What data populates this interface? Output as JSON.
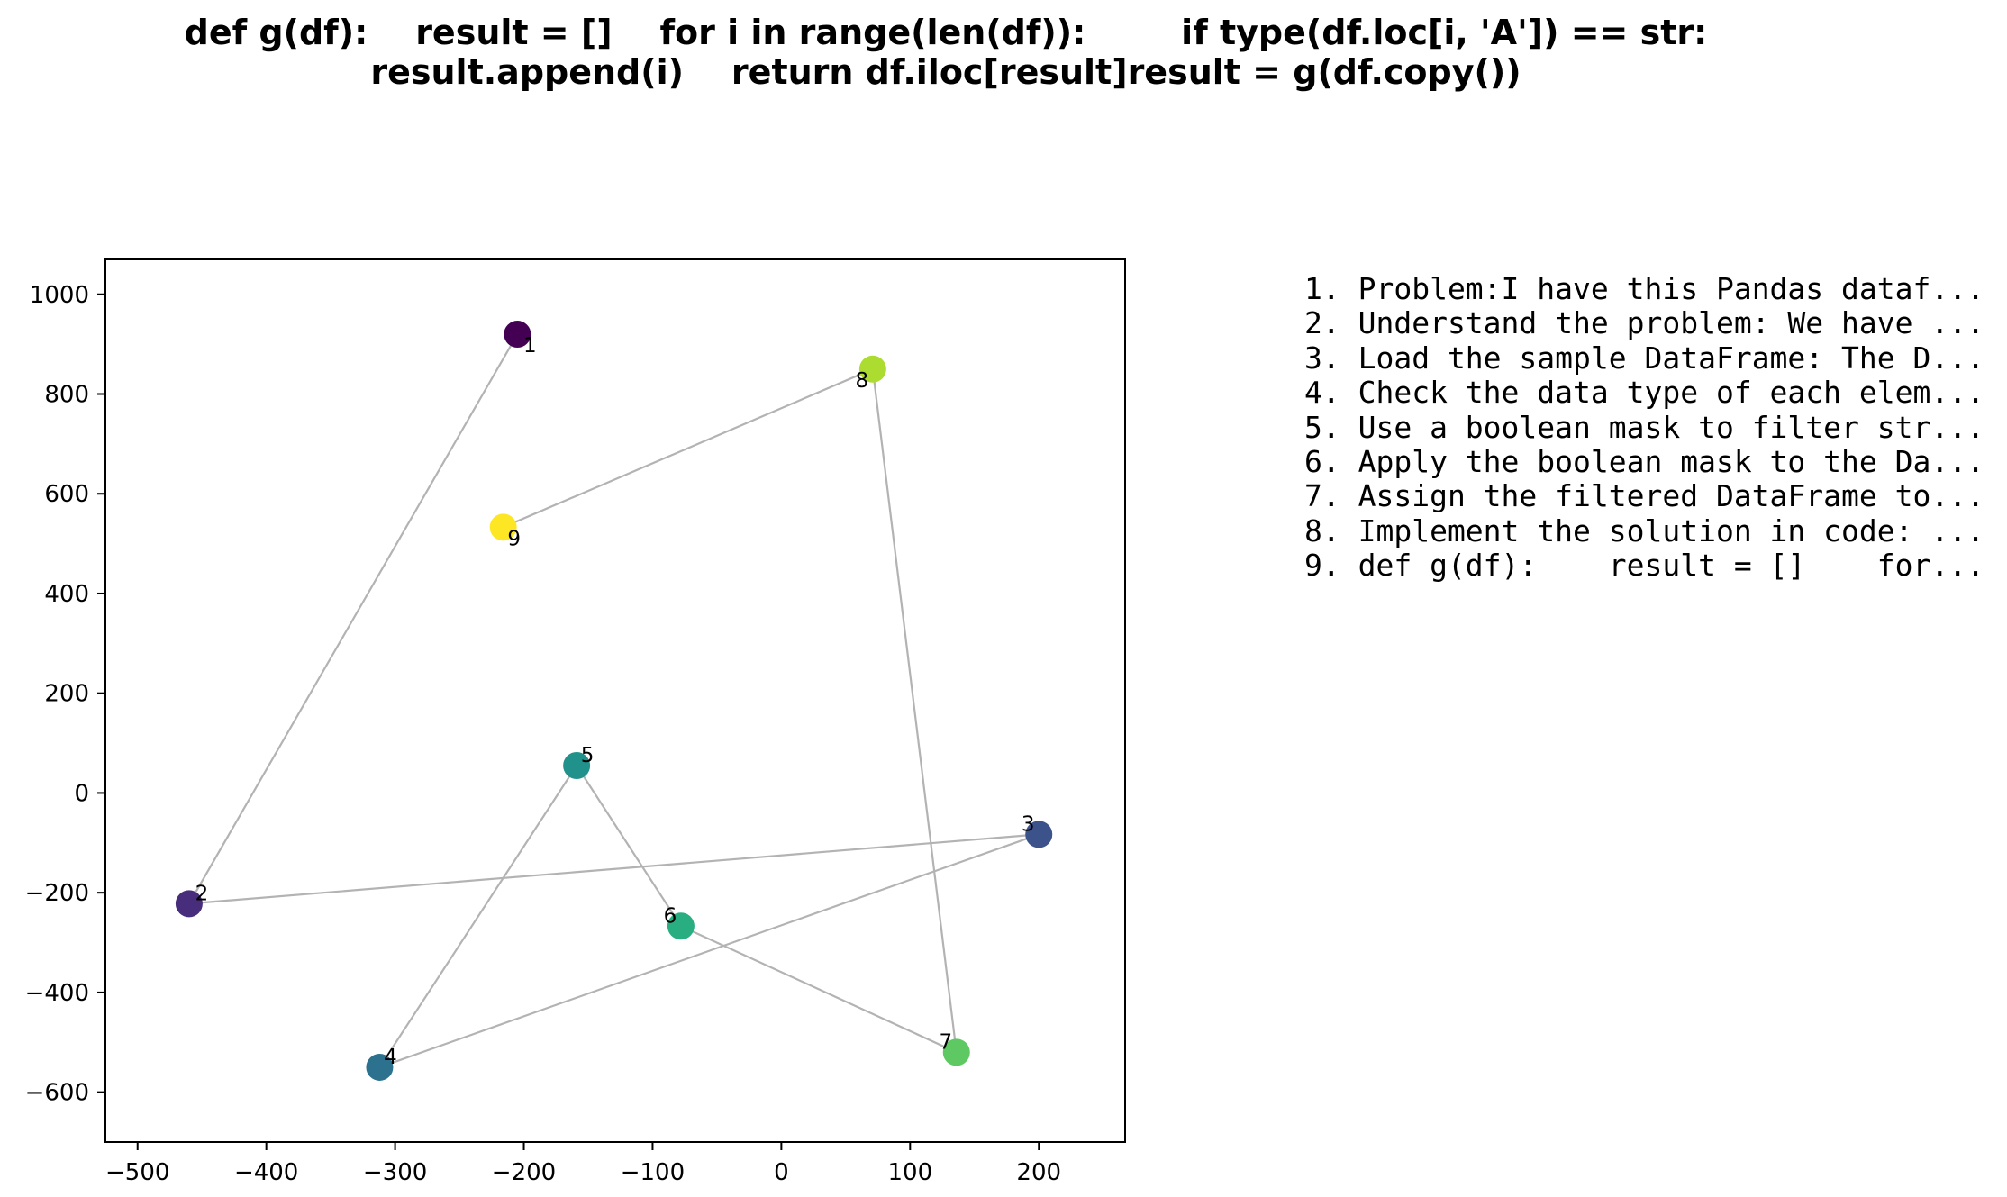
{
  "title_lines": [
    "def g(df):    result = []    for i in range(len(df)):        if type(df.loc[i, 'A']) == str:",
    "result.append(i)    return df.iloc[result]result = g(df.copy())"
  ],
  "steps": [
    "1. Problem:I have this Pandas dataf...",
    "2. Understand the problem: We have ...",
    "3. Load the sample DataFrame: The D...",
    "4. Check the data type of each elem...",
    "5. Use a boolean mask to filter str...",
    "6. Apply the boolean mask to the Da...",
    "7. Assign the filtered DataFrame to...",
    "8. Implement the solution in code: ...",
    "9. def g(df):    result = []    for..."
  ],
  "chart_data": {
    "type": "scatter",
    "title": "",
    "xlabel": "",
    "ylabel": "",
    "xlim": [
      -525,
      267
    ],
    "ylim": [
      -700,
      1070
    ],
    "x_ticks": [
      -500,
      -400,
      -300,
      -200,
      -100,
      0,
      100,
      200
    ],
    "y_ticks": [
      -600,
      -400,
      -200,
      0,
      200,
      400,
      600,
      800,
      1000
    ],
    "grid": false,
    "legend": "none",
    "connector_color": "#b3b3b3",
    "colormap": "viridis",
    "points": [
      {
        "label": "1",
        "x": -205,
        "y": 920,
        "color": "#440154"
      },
      {
        "label": "2",
        "x": -460,
        "y": -222,
        "color": "#472d7b"
      },
      {
        "label": "3",
        "x": 200,
        "y": -83,
        "color": "#3b528b"
      },
      {
        "label": "4",
        "x": -312,
        "y": -550,
        "color": "#2c728e"
      },
      {
        "label": "5",
        "x": -159,
        "y": 55,
        "color": "#21918c"
      },
      {
        "label": "6",
        "x": -78,
        "y": -267,
        "color": "#28ae80"
      },
      {
        "label": "7",
        "x": 136,
        "y": -520,
        "color": "#5ec962"
      },
      {
        "label": "8",
        "x": 71,
        "y": 850,
        "color": "#addc30"
      },
      {
        "label": "9",
        "x": -216,
        "y": 533,
        "color": "#fde725"
      }
    ]
  }
}
